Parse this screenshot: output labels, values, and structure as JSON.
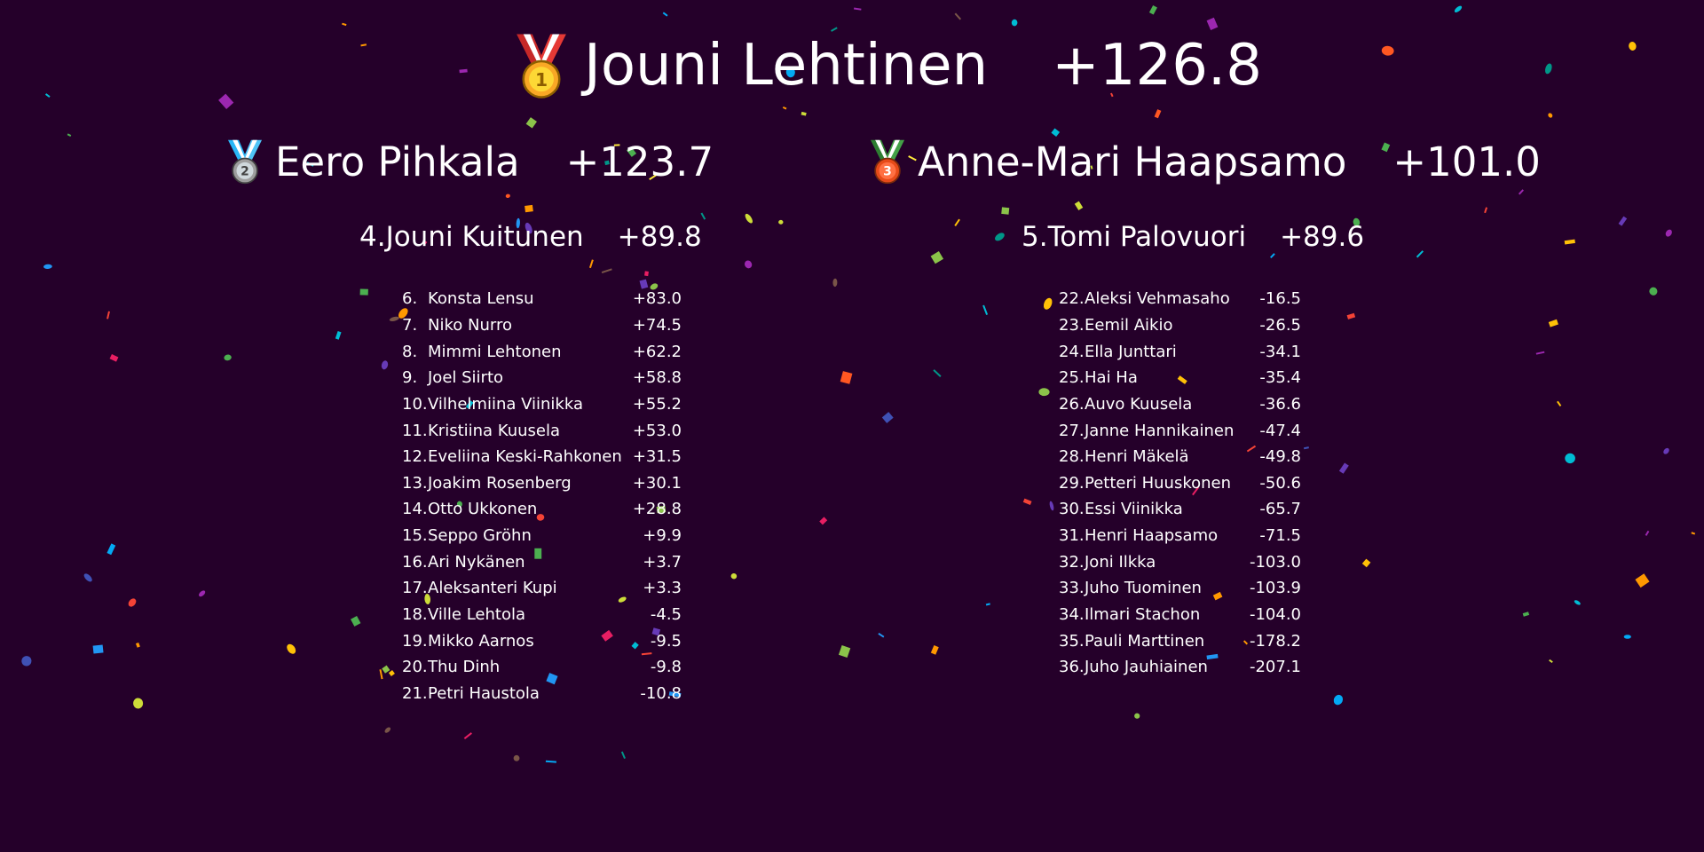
{
  "colors": {
    "background": "#25002a",
    "text": "#ffffff"
  },
  "podium": {
    "first": {
      "name": "Jouni Lehtinen",
      "score": "+126.8",
      "icon": "gold-medal-icon"
    },
    "second": {
      "name": "Eero Pihkala",
      "score": "+123.7",
      "icon": "silver-medal-icon"
    },
    "third": {
      "name": "Anne-Mari Haapsamo",
      "score": "+101.0",
      "icon": "bronze-medal-icon"
    }
  },
  "runners_up": [
    {
      "rank": "4.",
      "name": "Jouni Kuitunen",
      "score": "+89.8"
    },
    {
      "rank": "5.",
      "name": "Tomi Palovuori",
      "score": "+89.6"
    }
  ],
  "standings_left": [
    {
      "rank": "6.",
      "name": "Konsta Lensu",
      "score": "+83.0"
    },
    {
      "rank": "7.",
      "name": "Niko Nurro",
      "score": "+74.5"
    },
    {
      "rank": "8.",
      "name": "Mimmi Lehtonen",
      "score": "+62.2"
    },
    {
      "rank": "9.",
      "name": "Joel Siirto",
      "score": "+58.8"
    },
    {
      "rank": "10.",
      "name": "Vilhelmiina Viinikka",
      "score": "+55.2"
    },
    {
      "rank": "11.",
      "name": "Kristiina Kuusela",
      "score": "+53.0"
    },
    {
      "rank": "12.",
      "name": "Eveliina Keski-Rahkonen",
      "score": "+31.5"
    },
    {
      "rank": "13.",
      "name": "Joakim Rosenberg",
      "score": "+30.1"
    },
    {
      "rank": "14.",
      "name": "Otto Ukkonen",
      "score": "+28.8"
    },
    {
      "rank": "15.",
      "name": "Seppo Gröhn",
      "score": "+9.9"
    },
    {
      "rank": "16.",
      "name": "Ari Nykänen",
      "score": "+3.7"
    },
    {
      "rank": "17.",
      "name": "Aleksanteri Kupi",
      "score": "+3.3"
    },
    {
      "rank": "18.",
      "name": "Ville Lehtola",
      "score": "-4.5"
    },
    {
      "rank": "19.",
      "name": "Mikko Aarnos",
      "score": "-9.5"
    },
    {
      "rank": "20.",
      "name": "Thu Dinh",
      "score": "-9.8"
    },
    {
      "rank": "21.",
      "name": "Petri Haustola",
      "score": "-10.8"
    }
  ],
  "standings_right": [
    {
      "rank": "22.",
      "name": "Aleksi Vehmasaho",
      "score": "-16.5"
    },
    {
      "rank": "23.",
      "name": "Eemil Aikio",
      "score": "-26.5"
    },
    {
      "rank": "24.",
      "name": "Ella Junttari",
      "score": "-34.1"
    },
    {
      "rank": "25.",
      "name": "Hai Ha",
      "score": "-35.4"
    },
    {
      "rank": "26.",
      "name": "Auvo Kuusela",
      "score": "-36.6"
    },
    {
      "rank": "27.",
      "name": "Janne Hannikainen",
      "score": "-47.4"
    },
    {
      "rank": "28.",
      "name": "Henri Mäkelä",
      "score": "-49.8"
    },
    {
      "rank": "29.",
      "name": "Petteri Huuskonen",
      "score": "-50.6"
    },
    {
      "rank": "30.",
      "name": "Essi Viinikka",
      "score": "-65.7"
    },
    {
      "rank": "31.",
      "name": "Henri Haapsamo",
      "score": "-71.5"
    },
    {
      "rank": "32.",
      "name": "Joni Ilkka",
      "score": "-103.0"
    },
    {
      "rank": "33.",
      "name": "Juho Tuominen",
      "score": "-103.9"
    },
    {
      "rank": "34.",
      "name": "Ilmari Stachon",
      "score": "-104.0"
    },
    {
      "rank": "35.",
      "name": "Pauli Marttinen",
      "score": "-178.2"
    },
    {
      "rank": "36.",
      "name": "Juho Jauhiainen",
      "score": "-207.1"
    }
  ]
}
